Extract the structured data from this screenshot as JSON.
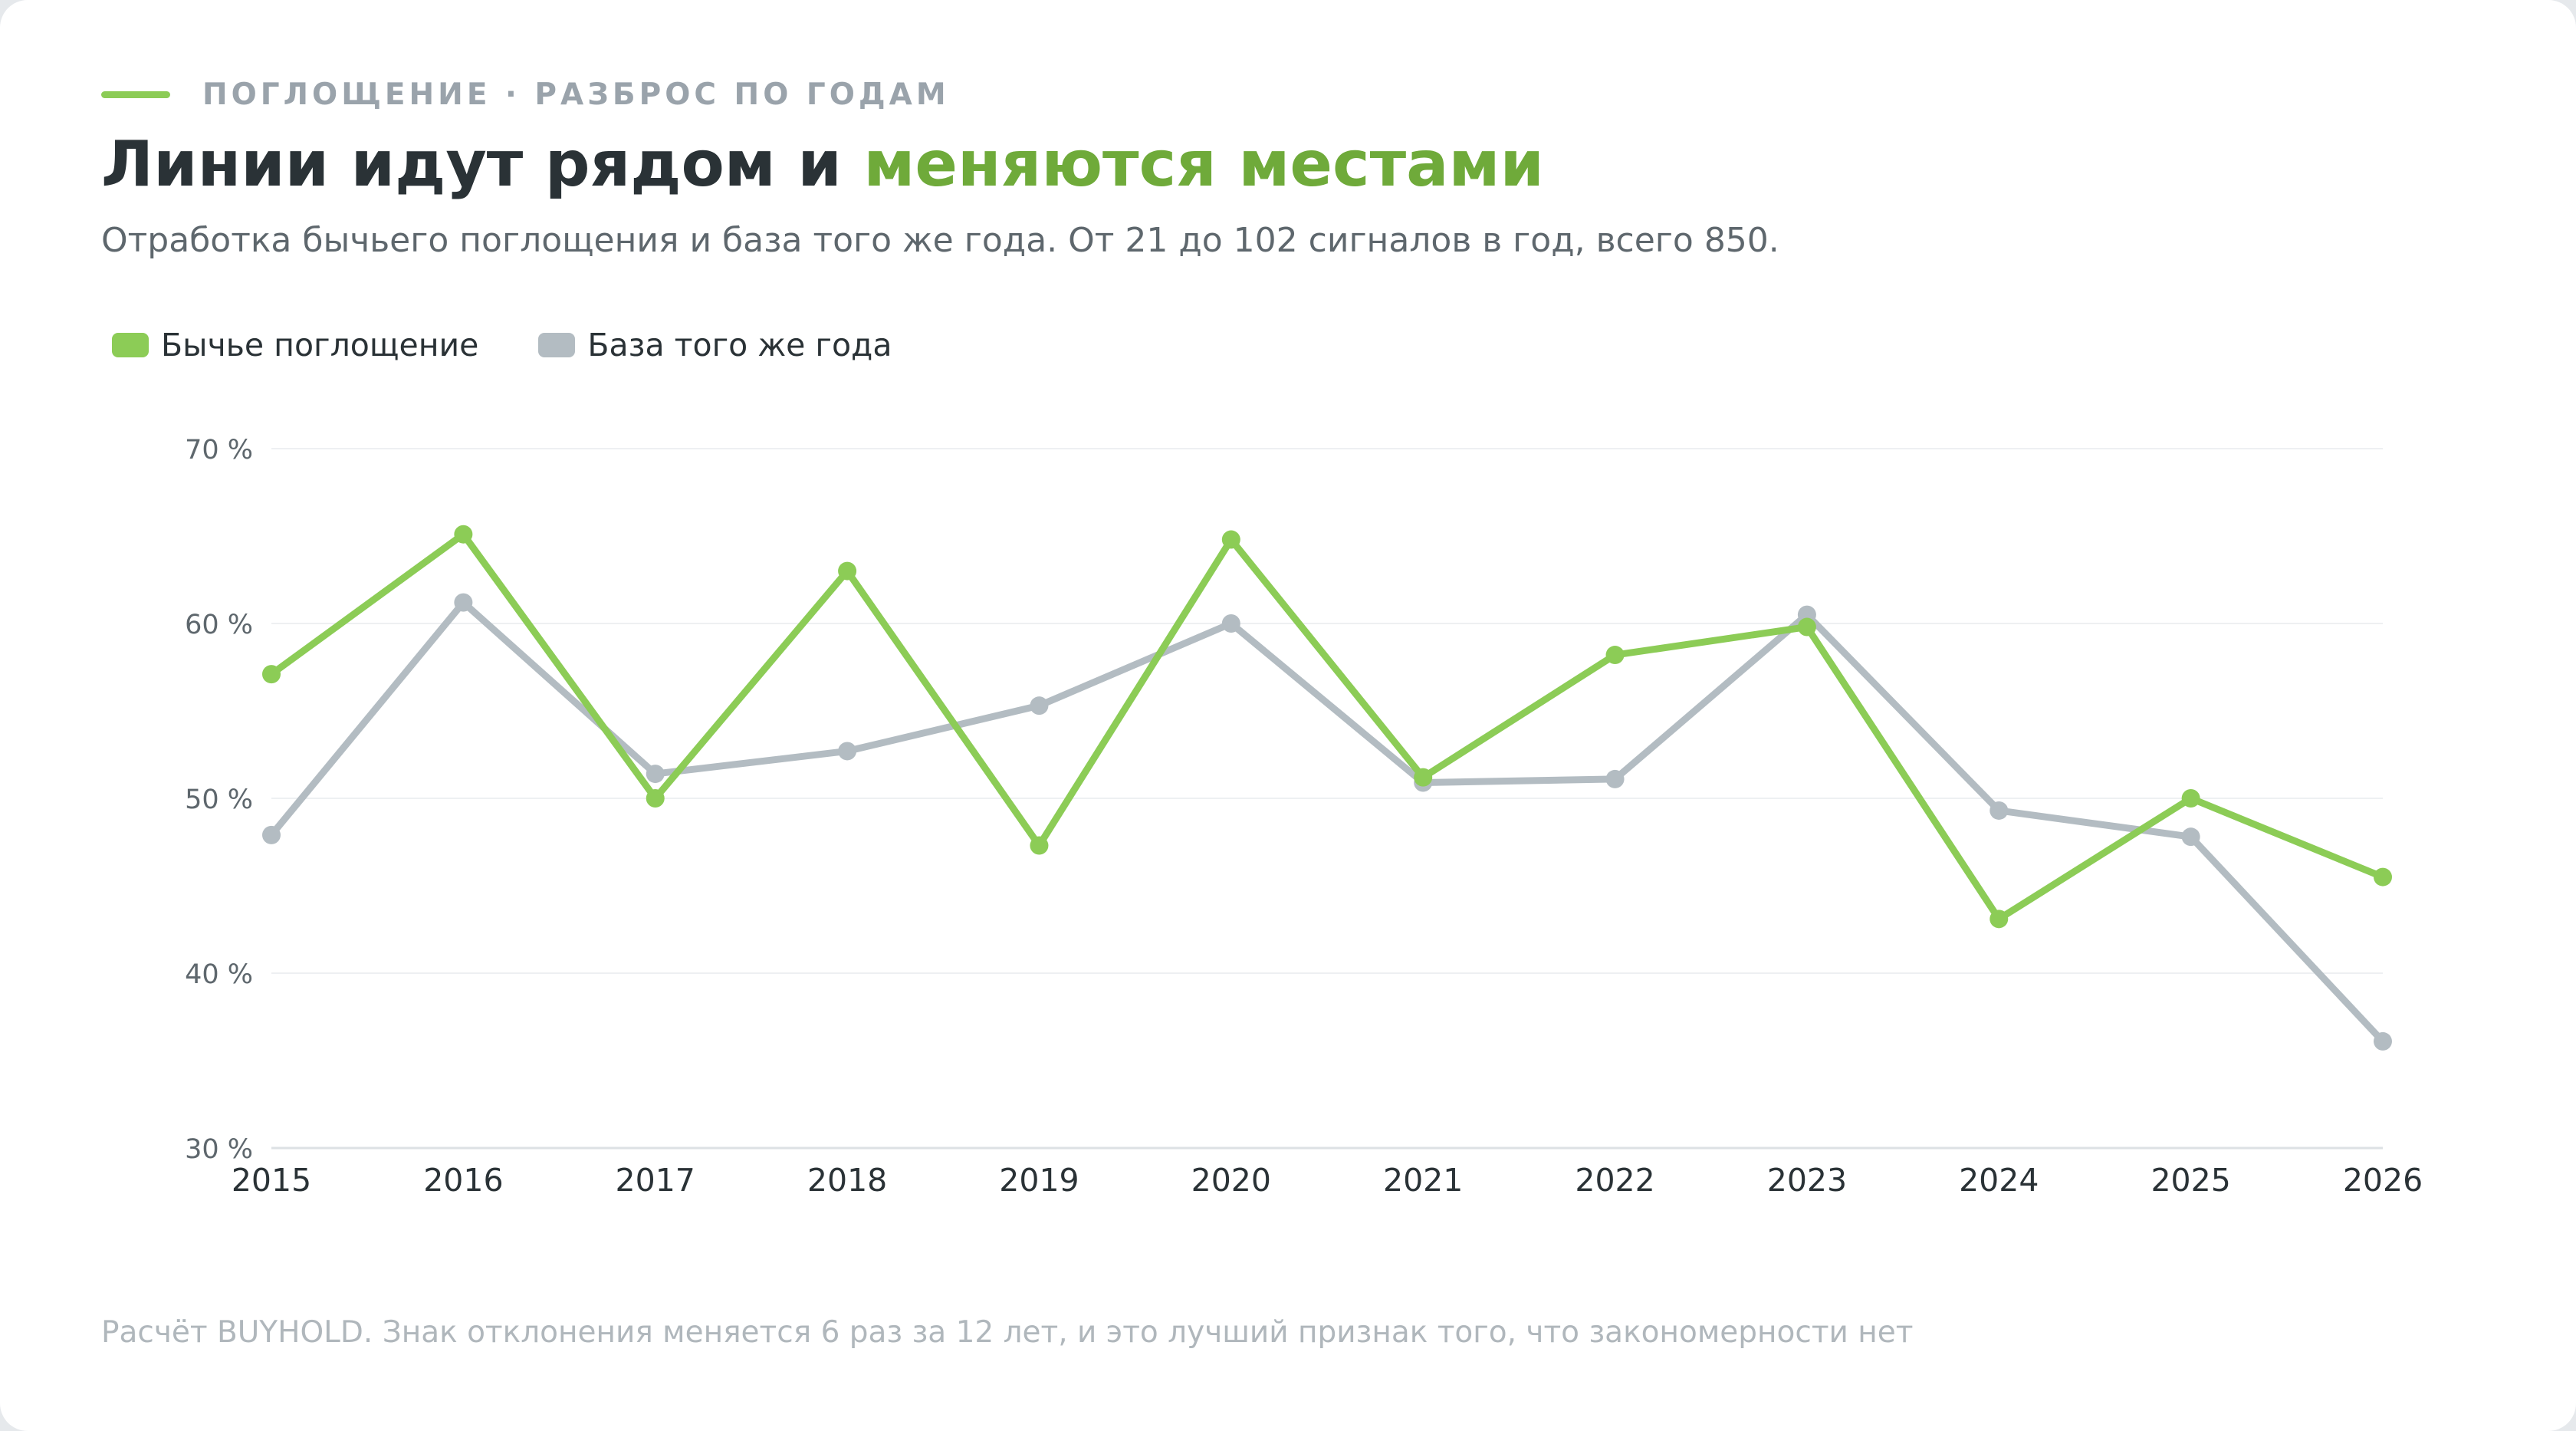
{
  "header": {
    "eyebrow": "ПОГЛОЩЕНИЕ · РАЗБРОС ПО ГОДАМ",
    "title_main": "Линии идут рядом и ",
    "title_accent": "меняются местами",
    "subtitle": "Отработка бычьего поглощения и база того же года. От 21 до 102 сигналов в год, всего 850."
  },
  "colors": {
    "accent": "#8ccc56",
    "accent_text": "#6faa3a",
    "baseline_series": "#b3bcc2",
    "grid": "#eef0f2",
    "axis": "#dde1e4"
  },
  "footnote": "Расчёт BUYHOLD. Знак отклонения меняется 6 раз за 12 лет, и это лучший признак того, что закономерности нет",
  "chart_data": {
    "type": "line",
    "title": "Линии идут рядом и меняются местами",
    "xlabel": "",
    "ylabel": "",
    "legend_position": "top-left",
    "grid": true,
    "x": [
      "2015",
      "2016",
      "2017",
      "2018",
      "2019",
      "2020",
      "2021",
      "2022",
      "2023",
      "2024",
      "2025",
      "2026"
    ],
    "ylim": [
      30,
      70
    ],
    "yticks": [
      30,
      40,
      50,
      60,
      70
    ],
    "ytick_labels": [
      "30 %",
      "40 %",
      "50 %",
      "60 %",
      "70 %"
    ],
    "series": [
      {
        "name": "Бычье поглощение",
        "color": "#8ccc56",
        "values": [
          57.1,
          65.1,
          50.0,
          63.0,
          47.3,
          64.8,
          51.2,
          58.2,
          59.8,
          43.1,
          50.0,
          45.5
        ]
      },
      {
        "name": "База того же года",
        "color": "#b3bcc2",
        "values": [
          47.9,
          61.2,
          51.4,
          52.7,
          55.3,
          60.0,
          50.9,
          51.1,
          60.5,
          49.3,
          47.8,
          36.1
        ]
      }
    ]
  }
}
